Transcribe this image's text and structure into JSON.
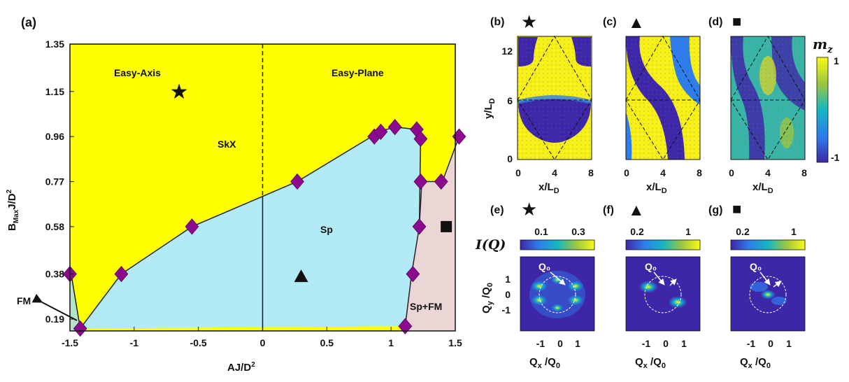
{
  "chart_data": {
    "type": "phase-diagram",
    "panels": {
      "a": {
        "label": "(a)",
        "xlabel": "AJ/D²",
        "ylabel": "B_MaxJ/D²",
        "xlim": [
          -1.5,
          1.5
        ],
        "ylim": [
          0.14,
          1.35
        ],
        "xticks": [
          "-1.5",
          "-1",
          "-0.5",
          "0",
          "0.5",
          "1",
          "1.5"
        ],
        "yticks": [
          "0.19",
          "0.38",
          "0.58",
          "0.77",
          "0.96",
          "1.15",
          "1.35"
        ],
        "region_labels": {
          "easy_axis": "Easy-Axis",
          "easy_plane": "Easy-Plane",
          "skx": "SkX",
          "sp": "Sp",
          "sp_fm": "Sp+FM",
          "fm": "FM"
        },
        "colors": {
          "skx": "#ffff00",
          "sp": "#b2ebf7",
          "sp_fm": "#ead6d4",
          "fm": "#b5e3c8",
          "marker": "#8b0a8e"
        },
        "sp_boundary": [
          [
            -1.42,
            0.15
          ],
          [
            -1.1,
            0.38
          ],
          [
            -0.55,
            0.58
          ],
          [
            0.27,
            0.77
          ],
          [
            0.85,
            0.96
          ],
          [
            0.9,
            0.98
          ],
          [
            1.03,
            1.0
          ],
          [
            1.2,
            0.99
          ],
          [
            1.23,
            0.95
          ],
          [
            1.22,
            0.58
          ],
          [
            1.16,
            0.38
          ],
          [
            1.11,
            0.16
          ]
        ],
        "spfm_boundary": [
          [
            1.22,
            0.58
          ],
          [
            1.24,
            0.77
          ],
          [
            1.4,
            0.77
          ],
          [
            1.53,
            0.96
          ]
        ],
        "fm_boundary": [
          [
            -1.49,
            0.38
          ],
          [
            -1.42,
            0.15
          ]
        ],
        "markers": [
          [
            -1.5,
            0.38
          ],
          [
            -1.42,
            0.15
          ],
          [
            -1.1,
            0.38
          ],
          [
            -0.55,
            0.58
          ],
          [
            0.27,
            0.77
          ],
          [
            0.87,
            0.96
          ],
          [
            0.92,
            0.98
          ],
          [
            1.03,
            1.0
          ],
          [
            1.2,
            0.99
          ],
          [
            1.23,
            0.95
          ],
          [
            1.23,
            0.77
          ],
          [
            1.39,
            0.77
          ],
          [
            1.53,
            0.96
          ],
          [
            1.22,
            0.58
          ],
          [
            1.17,
            0.38
          ],
          [
            1.11,
            0.16
          ]
        ],
        "star": [
          -0.65,
          1.15
        ],
        "triangle": [
          0.3,
          0.37
        ],
        "square": [
          1.43,
          0.58
        ]
      },
      "b": {
        "label": "(b)",
        "symbol": "★",
        "xlabel": "x/L_D",
        "ylabel": "y/L_D",
        "xticks": [
          "0",
          "4",
          "8"
        ],
        "yticks": [
          "0",
          "6",
          "12"
        ]
      },
      "c": {
        "label": "(c)",
        "symbol": "▲",
        "xlabel": "x/L_D",
        "xticks": [
          "0",
          "4",
          "8"
        ]
      },
      "d": {
        "label": "(d)",
        "symbol": "■",
        "xlabel": "x/L_D",
        "xticks": [
          "0",
          "4",
          "8"
        ]
      },
      "mz_colorbar": {
        "title": "m_z",
        "max": "1",
        "min": "-1"
      },
      "e": {
        "label": "(e)",
        "symbol": "★",
        "cbar_ticks": [
          "0.1",
          "0.3"
        ]
      },
      "f": {
        "label": "(f)",
        "symbol": "▲",
        "cbar_ticks": [
          "0.2",
          "1"
        ]
      },
      "g": {
        "label": "(g)",
        "symbol": "■",
        "cbar_ticks": [
          "0.2",
          "1"
        ]
      },
      "intensity_label": "I(Q)",
      "q_label": "Q₀",
      "q_xlabel": "Q_x /Q_0",
      "q_ylabel": "Q_y /Q_0",
      "q_xticks": [
        "-1",
        "0",
        "1"
      ],
      "q_yticks": [
        "1",
        "0",
        "-1"
      ]
    }
  }
}
